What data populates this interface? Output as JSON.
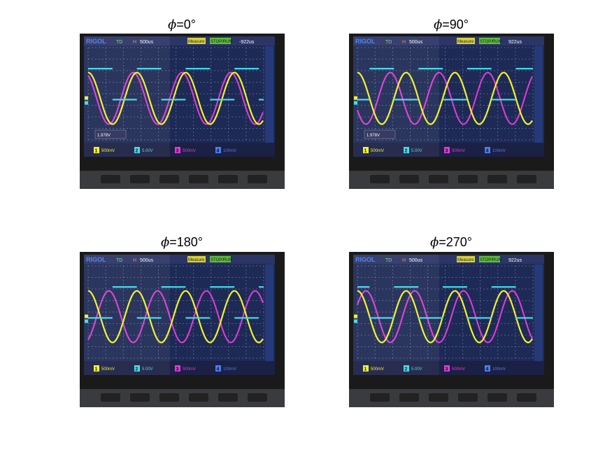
{
  "panels": [
    {
      "id": "p0",
      "title_symbol": "ϕ",
      "title_value": "=0°",
      "scope": {
        "brand": "RIGOL",
        "mode": "TD",
        "timebase": "500us",
        "measure": "Measure",
        "stop": "STOP/RUN",
        "trigger": "-922us",
        "ch1": "500mV",
        "ch2": "5.00V",
        "ch3": "500mV",
        "ch4": "100mV",
        "readout": "1.978V"
      },
      "phase_deg": 0
    },
    {
      "id": "p90",
      "title_symbol": "ϕ",
      "title_value": "=90°",
      "scope": {
        "brand": "RIGOL",
        "mode": "TD",
        "timebase": "500us",
        "measure": "Measure",
        "stop": "STOP/RUN",
        "trigger": "922us",
        "ch1": "500mV",
        "ch2": "5.00V",
        "ch3": "500mV",
        "ch4": "100mV",
        "readout": "1.978V"
      },
      "phase_deg": 90
    },
    {
      "id": "p180",
      "title_symbol": "ϕ",
      "title_value": "=180°",
      "scope": {
        "brand": "RIGOL",
        "mode": "TD",
        "timebase": "500us",
        "measure": "Measure",
        "stop": "STOP/RUN",
        "trigger": "",
        "ch1": "500mV",
        "ch2": "5.00V",
        "ch3": "500mV",
        "ch4": "100mV",
        "readout": ""
      },
      "phase_deg": 180
    },
    {
      "id": "p270",
      "title_symbol": "ϕ",
      "title_value": "=270°",
      "scope": {
        "brand": "RIGOL",
        "mode": "TD",
        "timebase": "500us",
        "measure": "Measure",
        "stop": "STOP/RUN",
        "trigger": "922us",
        "ch1": "500mV",
        "ch2": "5.00V",
        "ch3": "500mV",
        "ch4": "100mV",
        "readout": ""
      },
      "phase_deg": 270
    }
  ],
  "colors": {
    "ch1_sine": "#f2f227",
    "ch2_square": "#3fd8e8",
    "ch3_sine": "#e23cd8",
    "screen_bg": "#1e2a56",
    "grid": "#8a93b8",
    "bezel": "#1a1a1a"
  }
}
